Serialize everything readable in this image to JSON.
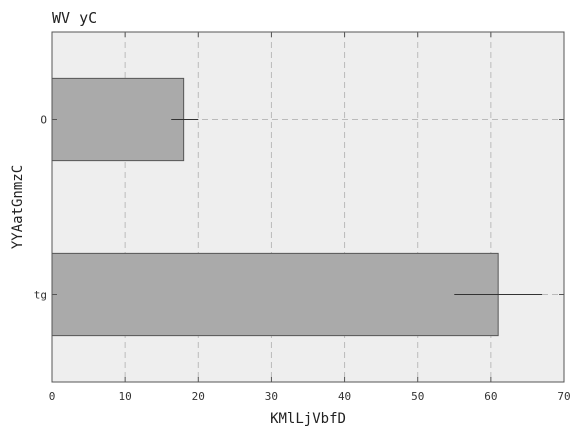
{
  "chart_data": {
    "type": "bar",
    "orientation": "horizontal",
    "title": "WV yC",
    "xlabel": "KMlLjVbfD",
    "ylabel": "YYAatGnmzC",
    "categories": [
      "O",
      "tg"
    ],
    "values": [
      18,
      61
    ],
    "errors": [
      {
        "low": 16.3,
        "high": 20
      },
      {
        "low": 55,
        "high": 67
      }
    ],
    "xlim": [
      0,
      70
    ],
    "xticks": [
      0,
      10,
      20,
      30,
      40,
      50,
      60,
      70
    ],
    "grid": true,
    "colors": {
      "bar": "#aaaaaa",
      "bar_edge": "#555555",
      "plot_bg": "#eeeeee",
      "grid": "#bbbbbb",
      "error": "#333333"
    }
  }
}
